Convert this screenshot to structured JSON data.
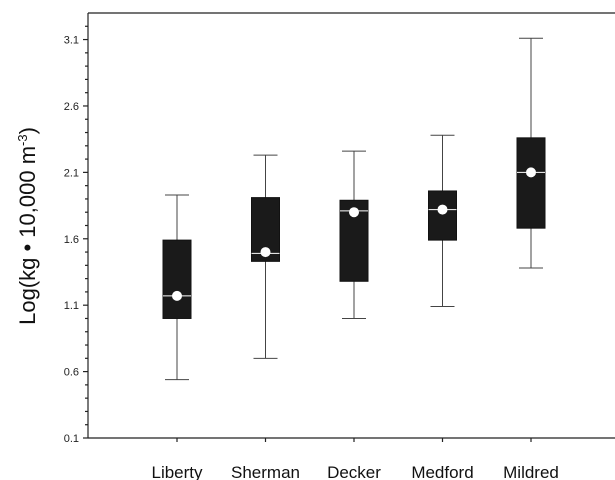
{
  "chart_data": {
    "type": "boxplot",
    "title": "",
    "xlabel": "",
    "ylabel": {
      "prefix": "Log(kg • 10,000 m",
      "superscript": "-3",
      "suffix": ")"
    },
    "ylim": [
      0.1,
      3.3
    ],
    "yticks": [
      "0.1",
      "0.6",
      "1.1",
      "1.6",
      "2.1",
      "2.6",
      "3.1"
    ],
    "grid": false,
    "categories": [
      "Liberty",
      "Sherman",
      "Decker",
      "Medford",
      "Mildred"
    ],
    "boxes": [
      {
        "name": "Liberty",
        "whisker_low": 0.54,
        "q1": 1.0,
        "median": 1.17,
        "q3": 1.59,
        "whisker_high": 1.93,
        "mean": 1.17
      },
      {
        "name": "Sherman",
        "whisker_low": 0.7,
        "q1": 1.43,
        "median": 1.49,
        "q3": 1.91,
        "whisker_high": 2.23,
        "mean": 1.5
      },
      {
        "name": "Decker",
        "whisker_low": 1.0,
        "q1": 1.28,
        "median": 1.81,
        "q3": 1.89,
        "whisker_high": 2.26,
        "mean": 1.8
      },
      {
        "name": "Medford",
        "whisker_low": 1.09,
        "q1": 1.59,
        "median": 1.82,
        "q3": 1.96,
        "whisker_high": 2.38,
        "mean": 1.82
      },
      {
        "name": "Mildred",
        "whisker_low": 1.38,
        "q1": 1.68,
        "median": 2.1,
        "q3": 2.36,
        "whisker_high": 3.11,
        "mean": 2.1
      }
    ],
    "colors": {
      "box": "#1a1a1a",
      "median": "#ffffff",
      "mean": "#ffffff",
      "whisker": "#444444"
    }
  }
}
